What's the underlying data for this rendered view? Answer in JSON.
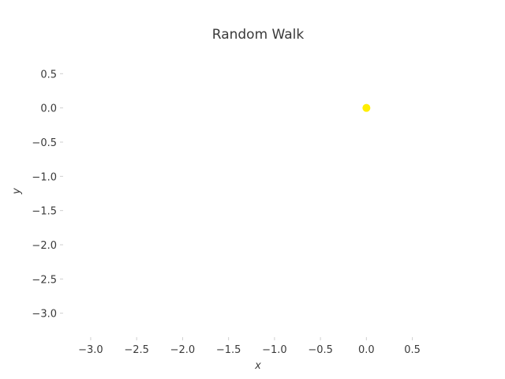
{
  "chart_data": {
    "type": "scatter",
    "title": "Random Walk",
    "xlabel": "x",
    "ylabel": "y",
    "xlim": [
      -3.3,
      0.95
    ],
    "ylim": [
      -3.35,
      0.85
    ],
    "x_ticks": [
      -3.0,
      -2.5,
      -2.0,
      -1.5,
      -1.0,
      -0.5,
      0.0,
      0.5
    ],
    "x_tick_labels": [
      "−3.0",
      "−2.5",
      "−2.0",
      "−1.5",
      "−1.0",
      "−0.5",
      "0.0",
      "0.5"
    ],
    "y_ticks": [
      0.5,
      0.0,
      -0.5,
      -1.0,
      -1.5,
      -2.0,
      -2.5,
      -3.0
    ],
    "y_tick_labels": [
      "0.5",
      "0.0",
      "−0.5",
      "−1.0",
      "−1.5",
      "−2.0",
      "−2.5",
      "−3.0"
    ],
    "grid": false,
    "series": [
      {
        "color": "#ffee00",
        "points": [
          {
            "x": 0.0,
            "y": 0.0
          }
        ]
      }
    ]
  }
}
